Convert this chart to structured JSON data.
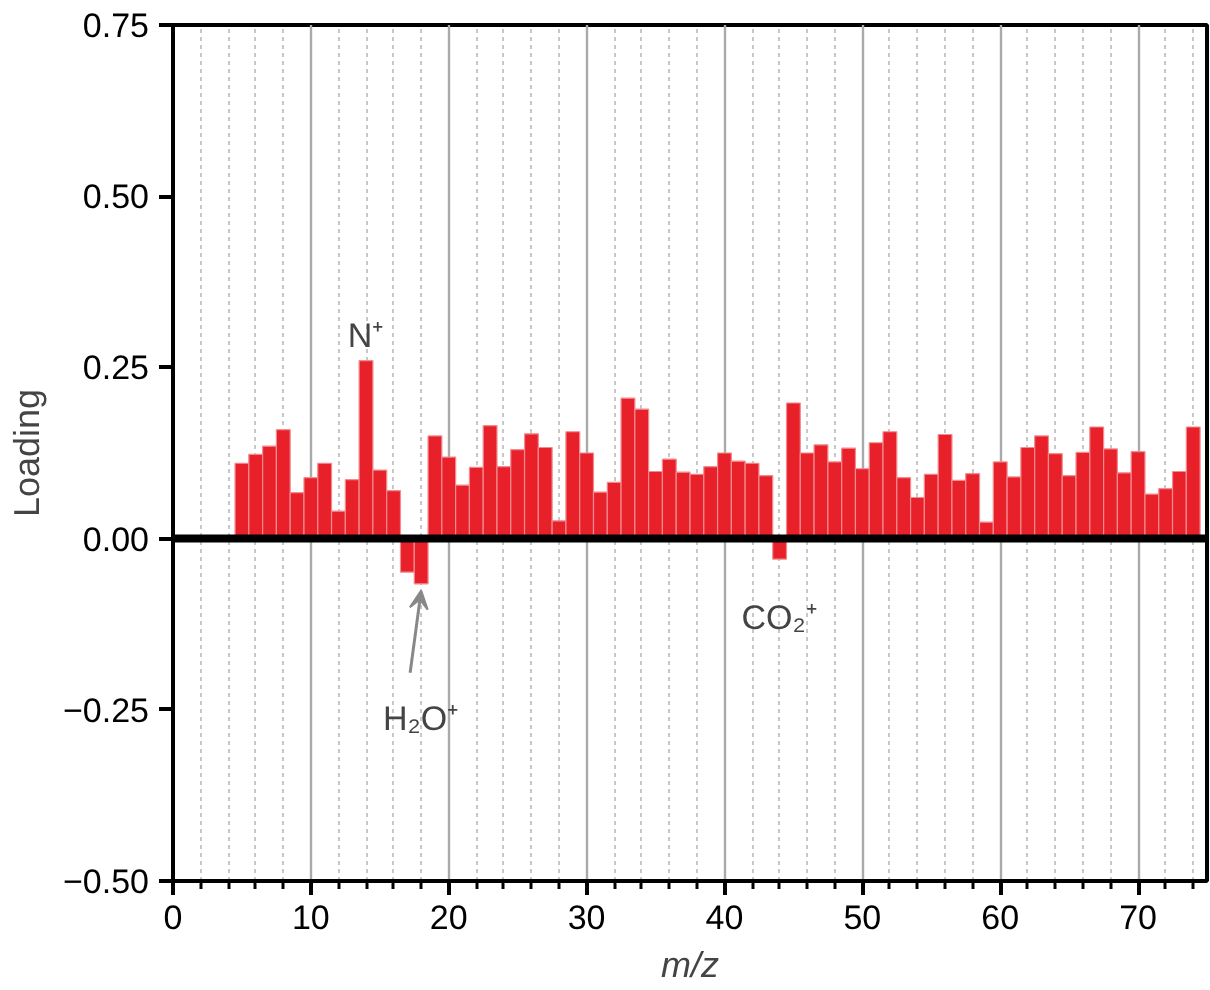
{
  "chart_data": {
    "type": "bar",
    "xlabel": "m/z",
    "ylabel": "Loading",
    "x": [
      5,
      6,
      7,
      8,
      9,
      10,
      11,
      12,
      13,
      14,
      15,
      16,
      17,
      18,
      19,
      20,
      21,
      22,
      23,
      24,
      25,
      26,
      27,
      28,
      29,
      30,
      31,
      32,
      33,
      34,
      35,
      36,
      37,
      38,
      39,
      40,
      41,
      42,
      43,
      44,
      45,
      46,
      47,
      48,
      49,
      50,
      51,
      52,
      53,
      54,
      55,
      56,
      57,
      58,
      59,
      60,
      61,
      62,
      63,
      64,
      65,
      66,
      67,
      68,
      69,
      70,
      71,
      72,
      73,
      74
    ],
    "values": [
      0.11,
      0.123,
      0.135,
      0.159,
      0.067,
      0.089,
      0.11,
      0.04,
      0.086,
      0.26,
      0.1,
      0.07,
      -0.049,
      -0.066,
      0.15,
      0.119,
      0.078,
      0.104,
      0.165,
      0.105,
      0.13,
      0.153,
      0.133,
      0.026,
      0.156,
      0.125,
      0.068,
      0.082,
      0.205,
      0.189,
      0.098,
      0.116,
      0.097,
      0.094,
      0.105,
      0.125,
      0.113,
      0.11,
      0.092,
      -0.03,
      0.198,
      0.125,
      0.137,
      0.112,
      0.132,
      0.102,
      0.14,
      0.156,
      0.089,
      0.06,
      0.094,
      0.152,
      0.085,
      0.095,
      0.024,
      0.112,
      0.09,
      0.133,
      0.15,
      0.124,
      0.092,
      0.126,
      0.163,
      0.131,
      0.096,
      0.127,
      0.065,
      0.073,
      0.098,
      0.163
    ],
    "color": "#e8202a",
    "xlim": [
      0,
      75
    ],
    "xticks": [
      0,
      {
        "value": 2,
        "label": null
      },
      {
        "value": 4,
        "label": null
      },
      {
        "value": 6,
        "label": null
      },
      {
        "value": 8,
        "label": null
      },
      10,
      {
        "value": 12,
        "label": null
      },
      {
        "value": 14,
        "label": null
      },
      {
        "value": 16,
        "label": null
      },
      {
        "value": 18,
        "label": null
      },
      20,
      {
        "value": 22,
        "label": null
      },
      {
        "value": 24,
        "label": null
      },
      {
        "value": 26,
        "label": null
      },
      {
        "value": 28,
        "label": null
      },
      30,
      {
        "value": 32,
        "label": null
      },
      {
        "value": 34,
        "label": null
      },
      {
        "value": 36,
        "label": null
      },
      {
        "value": 38,
        "label": null
      },
      40,
      {
        "value": 42,
        "label": null
      },
      {
        "value": 44,
        "label": null
      },
      {
        "value": 46,
        "label": null
      },
      {
        "value": 48,
        "label": null
      },
      50,
      {
        "value": 52,
        "label": null
      },
      {
        "value": 54,
        "label": null
      },
      {
        "value": 56,
        "label": null
      },
      {
        "value": 58,
        "label": null
      },
      60,
      {
        "value": 62,
        "label": null
      },
      {
        "value": 64,
        "label": null
      },
      {
        "value": 66,
        "label": null
      },
      {
        "value": 68,
        "label": null
      },
      70,
      {
        "value": 72,
        "label": null
      },
      {
        "value": 74,
        "label": null
      }
    ],
    "ylim": [
      -0.5,
      0.75
    ],
    "yticks": [
      {
        "value": -0.5,
        "label": "−0.50"
      },
      {
        "value": -0.25,
        "label": "−0.25"
      },
      {
        "value": 0,
        "label": "0.00"
      },
      {
        "value": 0.25,
        "label": "0.25"
      },
      {
        "value": 0.5,
        "label": "0.50"
      },
      {
        "value": 0.75,
        "label": "0.75"
      }
    ],
    "grid": "x",
    "ref_lines": [
      {
        "axis": "y",
        "value": 0,
        "color": "#000000"
      }
    ],
    "annotations": [
      {
        "text": "N⁺",
        "x": 14,
        "y": 0.26
      },
      {
        "text": "H₂O⁺",
        "x": 18,
        "y": -0.066
      },
      {
        "text": "CO₂⁺",
        "x": 44,
        "y": -0.03
      }
    ]
  }
}
